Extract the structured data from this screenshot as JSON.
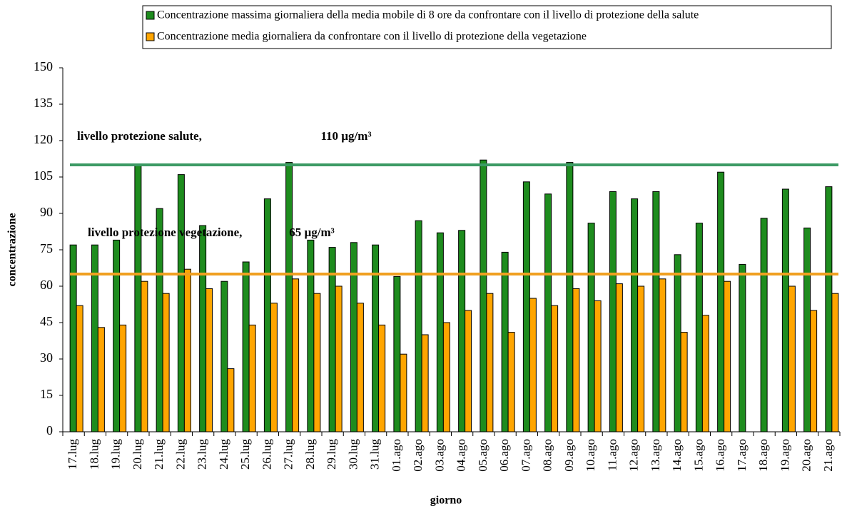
{
  "chart_data": {
    "type": "bar",
    "x_label": "giorno",
    "y_label": "concentrazione",
    "categories": [
      "17.lug",
      "18.lug",
      "19.lug",
      "20.lug",
      "21.lug",
      "22.lug",
      "23.lug",
      "24.lug",
      "25.lug",
      "26.lug",
      "27.lug",
      "28.lug",
      "29.lug",
      "30.lug",
      "31.lug",
      "01.ago",
      "02.ago",
      "03.ago",
      "04.ago",
      "05.ago",
      "06.ago",
      "07.ago",
      "08.ago",
      "09.ago",
      "10.ago",
      "11.ago",
      "12.ago",
      "13.ago",
      "14.ago",
      "15.ago",
      "16.ago",
      "17.ago",
      "18.ago",
      "19.ago",
      "20.ago",
      "21.ago"
    ],
    "series": [
      {
        "name": "Concentrazione massima giornaliera della media mobile di 8 ore da confrontare con il livello di protezione della salute",
        "color": "#1e8c1e",
        "values": [
          77,
          77,
          79,
          110,
          92,
          106,
          85,
          62,
          70,
          96,
          111,
          79,
          76,
          78,
          77,
          64,
          87,
          82,
          83,
          112,
          74,
          103,
          98,
          111,
          86,
          99,
          96,
          99,
          73,
          86,
          107,
          69,
          88,
          100,
          84,
          101
        ]
      },
      {
        "name": "Concentrazione media giornaliera da confrontare con il livello di protezione della vegetazione",
        "color": "#ffa500",
        "values": [
          52,
          43,
          44,
          62,
          57,
          67,
          59,
          26,
          44,
          53,
          63,
          57,
          60,
          53,
          44,
          32,
          40,
          45,
          50,
          57,
          41,
          55,
          52,
          59,
          54,
          61,
          60,
          63,
          41,
          48,
          62,
          null,
          null,
          60,
          50,
          57
        ]
      }
    ],
    "reference_lines": [
      {
        "value": 110,
        "color": "#3c9a64",
        "label": "livello protezione salute,",
        "value_label": "110 µg/m³"
      },
      {
        "value": 65,
        "color": "#f0a020",
        "label": "livello protezione vegetazione,",
        "value_label": "65 µg/m³"
      }
    ],
    "ylim": [
      0,
      150
    ],
    "yticks": [
      0,
      15,
      30,
      45,
      60,
      75,
      90,
      105,
      120,
      135,
      150
    ]
  }
}
